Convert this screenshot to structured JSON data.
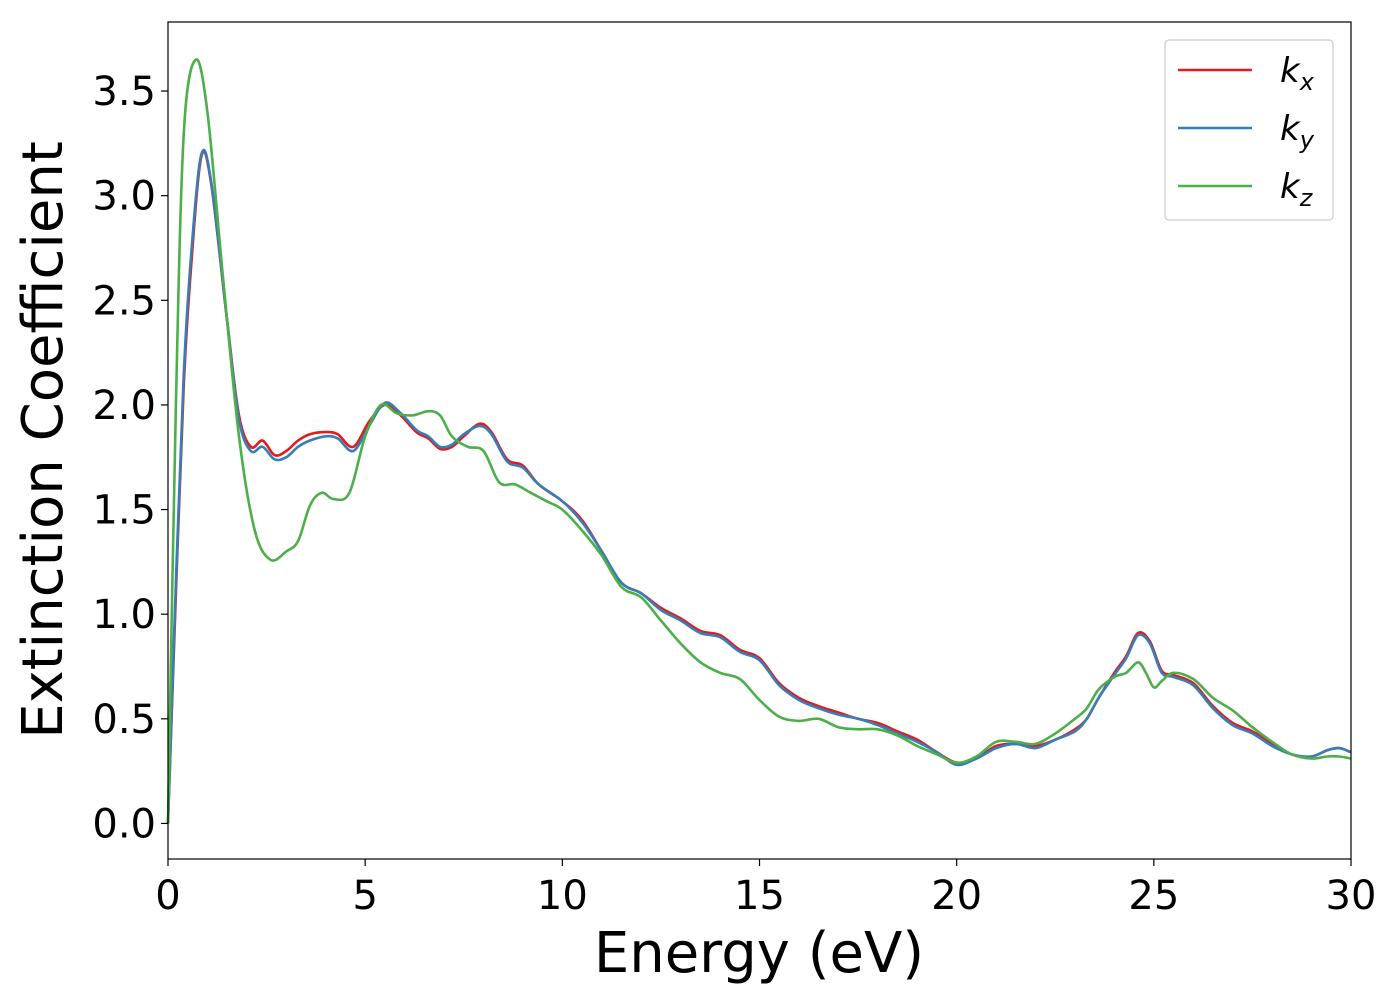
{
  "chart_data": {
    "type": "line",
    "title": "",
    "xlabel": "Energy (eV)",
    "ylabel": "Extinction Coefficient",
    "xlim": [
      0,
      30
    ],
    "ylim": [
      -0.17,
      3.83
    ],
    "xticks": [
      0,
      5,
      10,
      15,
      20,
      25,
      30
    ],
    "yticks": [
      0.0,
      0.5,
      1.0,
      1.5,
      2.0,
      2.5,
      3.0,
      3.5
    ],
    "xtick_labels": [
      "0",
      "5",
      "10",
      "15",
      "20",
      "25",
      "30"
    ],
    "ytick_labels": [
      "0.0",
      "0.5",
      "1.0",
      "1.5",
      "2.0",
      "2.5",
      "3.0",
      "3.5"
    ],
    "grid": false,
    "legend_position": "top-right",
    "series": [
      {
        "name": "k",
        "subscript": "x",
        "color": "#e41a1c",
        "x": [
          0,
          0.2,
          0.4,
          0.6,
          0.85,
          1.1,
          1.5,
          1.8,
          2.1,
          2.4,
          2.7,
          3.0,
          3.3,
          3.6,
          4.0,
          4.3,
          4.7,
          5.1,
          5.5,
          5.9,
          6.3,
          6.6,
          6.9,
          7.2,
          7.5,
          7.9,
          8.2,
          8.6,
          9.0,
          9.4,
          10.0,
          10.5,
          11.0,
          11.5,
          12.0,
          12.5,
          13.0,
          13.5,
          14.0,
          14.5,
          15.0,
          15.5,
          16.0,
          16.5,
          17.0,
          17.5,
          18.0,
          18.5,
          19.0,
          19.5,
          20.0,
          20.5,
          21.0,
          21.5,
          22.0,
          22.5,
          23.0,
          23.3,
          23.6,
          24.0,
          24.3,
          24.6,
          24.9,
          25.2,
          25.5,
          26.0,
          26.5,
          27.0,
          27.5,
          28.0,
          28.5,
          29.0,
          29.4,
          29.7,
          30.0
        ],
        "values": [
          0.0,
          1.1,
          2.1,
          2.7,
          3.19,
          3.05,
          2.4,
          1.95,
          1.8,
          1.83,
          1.76,
          1.78,
          1.83,
          1.86,
          1.87,
          1.86,
          1.8,
          1.92,
          2.0,
          1.95,
          1.87,
          1.84,
          1.79,
          1.8,
          1.85,
          1.91,
          1.87,
          1.74,
          1.71,
          1.62,
          1.54,
          1.45,
          1.3,
          1.15,
          1.1,
          1.03,
          0.98,
          0.92,
          0.9,
          0.83,
          0.79,
          0.67,
          0.6,
          0.56,
          0.53,
          0.5,
          0.48,
          0.44,
          0.4,
          0.34,
          0.29,
          0.31,
          0.37,
          0.38,
          0.37,
          0.4,
          0.45,
          0.5,
          0.6,
          0.72,
          0.8,
          0.91,
          0.87,
          0.73,
          0.71,
          0.67,
          0.56,
          0.48,
          0.44,
          0.38,
          0.33,
          0.32,
          0.35,
          0.36,
          0.34
        ]
      },
      {
        "name": "k",
        "subscript": "y",
        "color": "#377eb8",
        "x": [
          0,
          0.2,
          0.4,
          0.6,
          0.85,
          1.1,
          1.5,
          1.8,
          2.1,
          2.4,
          2.7,
          3.0,
          3.3,
          3.6,
          4.0,
          4.3,
          4.7,
          5.1,
          5.5,
          5.9,
          6.3,
          6.6,
          6.9,
          7.2,
          7.5,
          7.9,
          8.2,
          8.6,
          9.0,
          9.4,
          10.0,
          10.5,
          11.0,
          11.5,
          12.0,
          12.5,
          13.0,
          13.5,
          14.0,
          14.5,
          15.0,
          15.5,
          16.0,
          16.5,
          17.0,
          17.5,
          18.0,
          18.5,
          19.0,
          19.5,
          20.0,
          20.5,
          21.0,
          21.5,
          22.0,
          22.5,
          23.0,
          23.3,
          23.6,
          24.0,
          24.3,
          24.6,
          24.9,
          25.2,
          25.5,
          26.0,
          26.5,
          27.0,
          27.5,
          28.0,
          28.5,
          29.0,
          29.4,
          29.7,
          30.0
        ],
        "values": [
          0.0,
          1.15,
          2.15,
          2.75,
          3.2,
          3.06,
          2.4,
          1.93,
          1.78,
          1.8,
          1.74,
          1.75,
          1.8,
          1.83,
          1.85,
          1.84,
          1.78,
          1.9,
          2.01,
          1.96,
          1.88,
          1.85,
          1.8,
          1.81,
          1.86,
          1.9,
          1.86,
          1.73,
          1.7,
          1.62,
          1.54,
          1.44,
          1.3,
          1.15,
          1.1,
          1.02,
          0.97,
          0.91,
          0.89,
          0.82,
          0.78,
          0.66,
          0.59,
          0.55,
          0.52,
          0.5,
          0.47,
          0.43,
          0.39,
          0.34,
          0.28,
          0.31,
          0.36,
          0.38,
          0.36,
          0.4,
          0.44,
          0.5,
          0.6,
          0.71,
          0.79,
          0.9,
          0.86,
          0.72,
          0.7,
          0.66,
          0.55,
          0.47,
          0.43,
          0.37,
          0.33,
          0.32,
          0.35,
          0.36,
          0.34
        ]
      },
      {
        "name": "k",
        "subscript": "z",
        "color": "#4daf4a",
        "x": [
          0,
          0.2,
          0.4,
          0.7,
          1.0,
          1.4,
          1.8,
          2.2,
          2.6,
          3.0,
          3.3,
          3.6,
          3.9,
          4.2,
          4.6,
          5.0,
          5.4,
          5.8,
          6.2,
          6.6,
          6.9,
          7.2,
          7.6,
          8.0,
          8.4,
          8.8,
          9.2,
          9.6,
          10.0,
          10.5,
          11.0,
          11.5,
          12.0,
          12.5,
          13.0,
          13.5,
          14.0,
          14.5,
          15.0,
          15.5,
          16.0,
          16.5,
          17.0,
          17.5,
          18.0,
          18.5,
          19.0,
          19.5,
          20.0,
          20.5,
          21.0,
          21.5,
          22.0,
          22.5,
          23.0,
          23.3,
          23.6,
          24.0,
          24.3,
          24.6,
          24.8,
          25.0,
          25.2,
          25.5,
          26.0,
          26.5,
          27.0,
          27.5,
          28.0,
          28.5,
          29.0,
          29.4,
          29.7,
          30.0
        ],
        "values": [
          0.0,
          2.0,
          3.3,
          3.65,
          3.4,
          2.6,
          1.85,
          1.4,
          1.26,
          1.3,
          1.35,
          1.52,
          1.58,
          1.55,
          1.58,
          1.85,
          2.0,
          1.96,
          1.95,
          1.97,
          1.95,
          1.85,
          1.8,
          1.78,
          1.63,
          1.62,
          1.58,
          1.54,
          1.5,
          1.4,
          1.28,
          1.13,
          1.08,
          0.97,
          0.86,
          0.77,
          0.72,
          0.69,
          0.59,
          0.51,
          0.49,
          0.5,
          0.46,
          0.45,
          0.45,
          0.42,
          0.37,
          0.33,
          0.29,
          0.32,
          0.39,
          0.39,
          0.38,
          0.43,
          0.5,
          0.55,
          0.64,
          0.7,
          0.72,
          0.77,
          0.72,
          0.65,
          0.68,
          0.72,
          0.69,
          0.6,
          0.54,
          0.46,
          0.39,
          0.33,
          0.31,
          0.32,
          0.32,
          0.31
        ]
      }
    ]
  }
}
